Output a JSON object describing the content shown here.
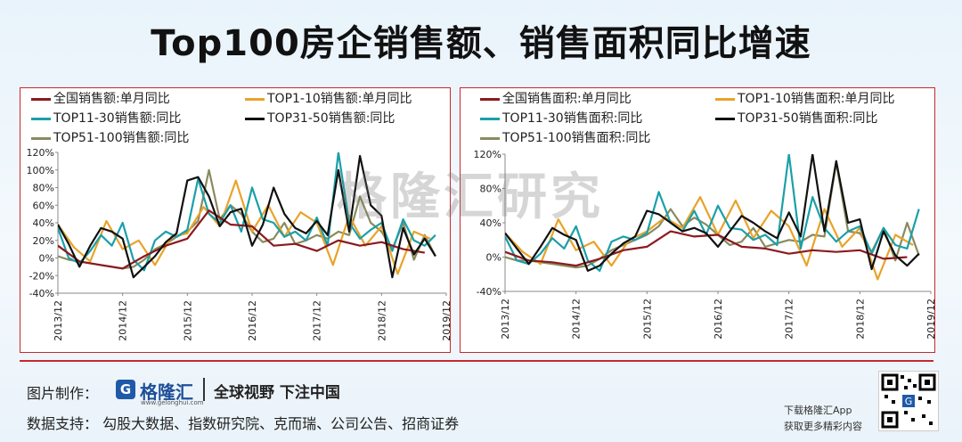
{
  "header": {
    "title": "Top100房企销售额、销售面积同比增速"
  },
  "watermark": "格隆汇研究",
  "footer": {
    "made_by_label": "图片制作：",
    "brand_name": "格隆汇",
    "brand_url": "www.gelonghui.com",
    "slogan": "全球视野 下注中国",
    "data_support": "数据支持： 勾股大数据、指数研究院、克而瑞、公司公告、招商证券",
    "app_line1": "下载格隆汇App",
    "app_line2": "获取更多精彩内容"
  },
  "colors": {
    "all": "#8b1a1f",
    "top1_10": "#e8a32a",
    "top11_30": "#1aa0a8",
    "top31_50": "#111111",
    "top51_100": "#8a8a5e",
    "frame": "#c9282d"
  },
  "chart_data": [
    {
      "type": "line",
      "title": "",
      "yticks": [
        "120%",
        "100%",
        "80%",
        "60%",
        "40%",
        "20%",
        "0%",
        "-20%",
        "-40%"
      ],
      "ylim": [
        -40,
        120
      ],
      "xticks": [
        "2013/12",
        "2014/12",
        "2015/12",
        "2016/12",
        "2017/12",
        "2018/12",
        "2019/12"
      ],
      "xlim": [
        0,
        72
      ],
      "series": [
        {
          "name": "全国销售额:单月同比",
          "key": "all",
          "x": [
            0,
            4,
            8,
            12,
            16,
            20,
            24,
            28,
            32,
            36,
            40,
            44,
            48,
            52,
            56,
            60,
            64,
            68
          ],
          "values": [
            14,
            -4,
            -8,
            -12,
            2,
            14,
            22,
            54,
            38,
            36,
            14,
            16,
            8,
            20,
            14,
            18,
            10,
            6
          ]
        },
        {
          "name": "TOP1-10销售额:单月同比",
          "key": "top1_10",
          "x": [
            0,
            3,
            6,
            9,
            12,
            15,
            18,
            21,
            24,
            27,
            30,
            33,
            36,
            39,
            42,
            45,
            48,
            51,
            54,
            57,
            60,
            63,
            66,
            69
          ],
          "values": [
            38,
            12,
            -4,
            42,
            10,
            20,
            -8,
            24,
            28,
            58,
            36,
            88,
            30,
            60,
            24,
            52,
            40,
            -8,
            48,
            14,
            36,
            -18,
            30,
            22
          ]
        },
        {
          "name": "TOP11-30销售额:同比",
          "key": "top11_30",
          "x": [
            0,
            2,
            4,
            6,
            8,
            10,
            12,
            14,
            16,
            18,
            20,
            22,
            24,
            26,
            28,
            30,
            32,
            34,
            36,
            38,
            40,
            42,
            44,
            46,
            48,
            50,
            52,
            54,
            56,
            58,
            60,
            62,
            64,
            66,
            68,
            70
          ],
          "values": [
            34,
            0,
            -6,
            8,
            26,
            14,
            40,
            -2,
            -14,
            20,
            30,
            24,
            32,
            90,
            50,
            40,
            60,
            30,
            80,
            44,
            40,
            24,
            30,
            20,
            46,
            14,
            120,
            40,
            22,
            32,
            40,
            8,
            44,
            20,
            14,
            26
          ]
        },
        {
          "name": "TOP31-50销售额:同比",
          "key": "top31_50",
          "x": [
            0,
            2,
            4,
            6,
            8,
            10,
            12,
            14,
            16,
            18,
            20,
            22,
            24,
            26,
            28,
            30,
            32,
            34,
            36,
            38,
            40,
            42,
            44,
            46,
            48,
            50,
            52,
            54,
            56,
            58,
            60,
            62,
            64,
            66,
            68,
            70
          ],
          "values": [
            38,
            16,
            -10,
            14,
            34,
            30,
            22,
            -22,
            -10,
            2,
            18,
            28,
            88,
            92,
            70,
            36,
            52,
            56,
            14,
            38,
            80,
            50,
            34,
            28,
            42,
            26,
            100,
            30,
            116,
            60,
            48,
            -22,
            34,
            4,
            22,
            2
          ]
        },
        {
          "name": "TOP51-100销售额:同比",
          "key": "top51_100",
          "x": [
            0,
            2,
            4,
            6,
            8,
            10,
            12,
            14,
            16,
            18,
            20,
            22,
            24,
            26,
            28,
            30,
            32,
            34,
            36,
            38,
            40,
            42,
            44,
            46,
            48,
            50,
            52,
            54,
            56,
            58,
            60,
            62,
            64,
            66,
            68,
            70
          ],
          "values": [
            2,
            -2,
            -4,
            -6,
            -8,
            -10,
            -12,
            -10,
            -2,
            10,
            16,
            24,
            30,
            42,
            100,
            44,
            60,
            50,
            30,
            18,
            22,
            40,
            16,
            20,
            26,
            22,
            30,
            26,
            70,
            40,
            30,
            10,
            40,
            -2,
            26,
            2
          ]
        }
      ]
    },
    {
      "type": "line",
      "title": "",
      "yticks": [
        "120%",
        "80%",
        "40%",
        "0%",
        "-40%"
      ],
      "ylim": [
        -40,
        120
      ],
      "xticks": [
        "2013/12",
        "2014/12",
        "2015/12",
        "2016/12",
        "2017/12",
        "2018/12",
        "2019/12"
      ],
      "xlim": [
        0,
        72
      ],
      "series": [
        {
          "name": "全国销售面积:单月同比",
          "key": "all",
          "x": [
            0,
            4,
            8,
            12,
            16,
            20,
            24,
            28,
            32,
            36,
            40,
            44,
            48,
            52,
            56,
            60,
            64,
            68
          ],
          "values": [
            6,
            -4,
            -6,
            -10,
            -2,
            8,
            12,
            30,
            24,
            26,
            12,
            10,
            4,
            8,
            6,
            8,
            -2,
            0
          ]
        },
        {
          "name": "TOP1-10销售面积:单月同比",
          "key": "top1_10",
          "x": [
            0,
            3,
            6,
            9,
            12,
            15,
            18,
            21,
            24,
            27,
            30,
            33,
            36,
            39,
            42,
            45,
            48,
            51,
            54,
            57,
            60,
            63,
            66,
            69
          ],
          "values": [
            28,
            6,
            -8,
            44,
            8,
            18,
            -10,
            20,
            30,
            46,
            34,
            70,
            26,
            66,
            22,
            54,
            36,
            -10,
            56,
            12,
            34,
            -26,
            26,
            14
          ]
        },
        {
          "name": "TOP11-30销售面积:同比",
          "key": "top11_30",
          "x": [
            0,
            2,
            4,
            6,
            8,
            10,
            12,
            14,
            16,
            18,
            20,
            22,
            24,
            26,
            28,
            30,
            32,
            34,
            36,
            38,
            40,
            42,
            44,
            46,
            48,
            50,
            52,
            54,
            56,
            58,
            60,
            62,
            64,
            66,
            68,
            70
          ],
          "values": [
            24,
            -4,
            -8,
            4,
            22,
            10,
            36,
            -4,
            -16,
            18,
            24,
            20,
            28,
            76,
            40,
            30,
            54,
            26,
            60,
            34,
            32,
            20,
            26,
            14,
            120,
            10,
            70,
            34,
            18,
            30,
            36,
            4,
            34,
            14,
            10,
            56
          ]
        },
        {
          "name": "TOP31-50销售面积:同比",
          "key": "top31_50",
          "x": [
            0,
            2,
            4,
            6,
            8,
            10,
            12,
            14,
            16,
            18,
            20,
            22,
            24,
            26,
            28,
            30,
            32,
            34,
            36,
            38,
            40,
            42,
            44,
            46,
            48,
            50,
            52,
            54,
            56,
            58,
            60,
            62,
            64,
            66,
            68,
            70
          ],
          "values": [
            28,
            10,
            -8,
            12,
            34,
            26,
            20,
            -16,
            -10,
            4,
            16,
            24,
            54,
            50,
            40,
            30,
            34,
            28,
            12,
            30,
            48,
            40,
            30,
            22,
            52,
            24,
            120,
            30,
            112,
            40,
            44,
            -14,
            30,
            2,
            -10,
            4
          ]
        },
        {
          "name": "TOP51-100销售面积:同比",
          "key": "top51_100",
          "x": [
            0,
            2,
            4,
            6,
            8,
            10,
            12,
            14,
            16,
            18,
            20,
            22,
            24,
            26,
            28,
            30,
            32,
            34,
            36,
            38,
            40,
            42,
            44,
            46,
            48,
            50,
            52,
            54,
            56,
            58,
            60,
            62,
            64,
            66,
            68,
            70
          ],
          "values": [
            0,
            -4,
            -4,
            -6,
            -8,
            -10,
            -12,
            -10,
            -2,
            8,
            14,
            20,
            26,
            36,
            56,
            36,
            46,
            38,
            26,
            14,
            18,
            34,
            12,
            16,
            20,
            18,
            26,
            24,
            110,
            30,
            28,
            6,
            34,
            -4,
            40,
            2
          ]
        }
      ]
    }
  ]
}
